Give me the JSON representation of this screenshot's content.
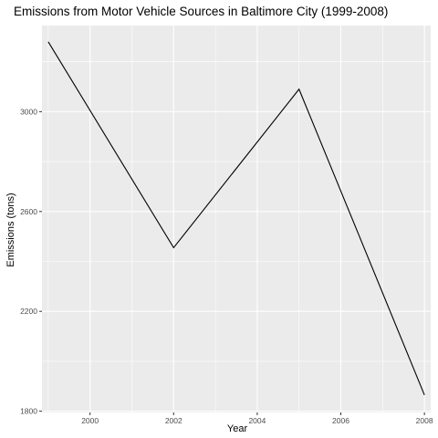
{
  "chart_data": {
    "type": "line",
    "title": "Emissions from Motor Vehicle Sources in Baltimore City (1999-2008)",
    "xlabel": "Year",
    "ylabel": "Emissions (tons)",
    "x": [
      1999,
      2002,
      2005,
      2008
    ],
    "series": [
      {
        "values": [
          3280,
          2455,
          3090,
          1865
        ]
      }
    ],
    "xlim": [
      1998.85,
      2008.15
    ],
    "ylim": [
      1795,
      3345
    ],
    "xticks": [
      2000,
      2002,
      2004,
      2006,
      2008
    ],
    "yticks": [
      1800,
      2200,
      2600,
      3000
    ],
    "grid": true
  },
  "colors": {
    "panel": "#ebebeb",
    "grid_major": "#ffffff",
    "line": "#000000"
  }
}
